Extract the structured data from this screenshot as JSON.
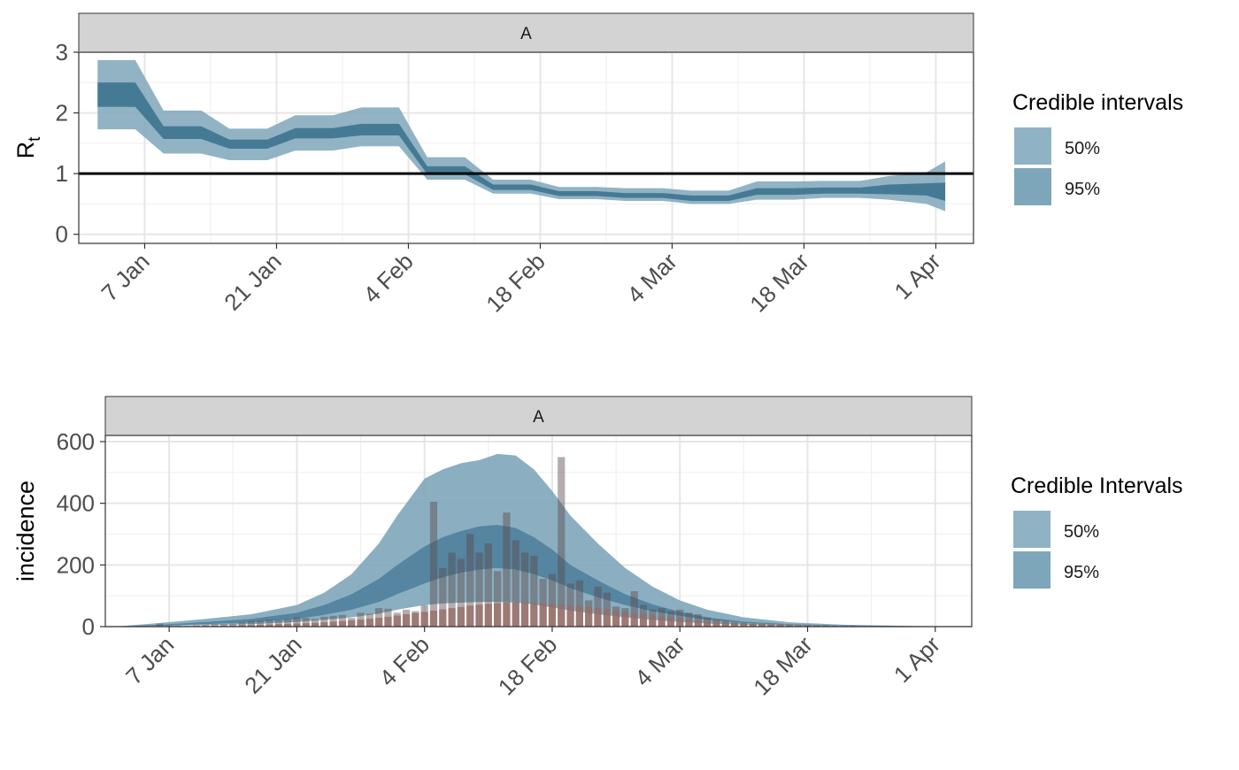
{
  "chart_data": [
    {
      "type": "area",
      "facet_label": "A",
      "ylabel": "R",
      "ylabel_subscript": "t",
      "x_axis": {
        "type": "date",
        "year": 2021,
        "range": [
          "2021-12-31",
          "2022-04-05"
        ]
      },
      "ylim": [
        -0.15,
        3.0
      ],
      "yticks": [
        0,
        1,
        2,
        3
      ],
      "xticks": [
        {
          "date": "2022-01-07",
          "label": "7 Jan"
        },
        {
          "date": "2022-01-21",
          "label": "21 Jan"
        },
        {
          "date": "2022-02-04",
          "label": "4 Feb"
        },
        {
          "date": "2022-02-18",
          "label": "18 Feb"
        },
        {
          "date": "2022-03-04",
          "label": "4 Mar"
        },
        {
          "date": "2022-03-18",
          "label": "18 Mar"
        },
        {
          "date": "2022-04-01",
          "label": "1 Apr"
        }
      ],
      "reference_line": 1,
      "grid": true,
      "legend": {
        "title": "Credible intervals",
        "position": "right",
        "entries": [
          {
            "label": "50%",
            "color": "#8fb3c4"
          },
          {
            "label": "95%",
            "color": "#7ea6ba"
          }
        ]
      },
      "series": {
        "x": [
          "2022-01-02",
          "2022-01-06",
          "2022-01-09",
          "2022-01-13",
          "2022-01-16",
          "2022-01-20",
          "2022-01-23",
          "2022-01-27",
          "2022-01-30",
          "2022-02-03",
          "2022-02-06",
          "2022-02-10",
          "2022-02-13",
          "2022-02-17",
          "2022-02-20",
          "2022-02-24",
          "2022-02-27",
          "2022-03-03",
          "2022-03-06",
          "2022-03-10",
          "2022-03-13",
          "2022-03-17",
          "2022-03-20",
          "2022-03-24",
          "2022-03-27",
          "2022-03-31",
          "2022-04-02"
        ],
        "lower95": [
          1.73,
          1.73,
          1.33,
          1.33,
          1.22,
          1.22,
          1.38,
          1.38,
          1.45,
          1.45,
          0.9,
          0.9,
          0.67,
          0.67,
          0.58,
          0.58,
          0.55,
          0.55,
          0.5,
          0.5,
          0.57,
          0.57,
          0.6,
          0.6,
          0.57,
          0.5,
          0.38
        ],
        "lower50": [
          2.1,
          2.1,
          1.57,
          1.57,
          1.41,
          1.41,
          1.58,
          1.58,
          1.63,
          1.63,
          0.99,
          0.99,
          0.73,
          0.73,
          0.63,
          0.63,
          0.6,
          0.6,
          0.55,
          0.55,
          0.65,
          0.65,
          0.67,
          0.67,
          0.66,
          0.64,
          0.55
        ],
        "upper50": [
          2.5,
          2.5,
          1.78,
          1.78,
          1.56,
          1.56,
          1.75,
          1.75,
          1.82,
          1.82,
          1.12,
          1.12,
          0.82,
          0.82,
          0.71,
          0.71,
          0.68,
          0.68,
          0.64,
          0.64,
          0.76,
          0.76,
          0.77,
          0.77,
          0.82,
          0.84,
          0.85
        ],
        "upper95": [
          2.87,
          2.87,
          2.04,
          2.04,
          1.74,
          1.74,
          1.96,
          1.96,
          2.09,
          2.09,
          1.27,
          1.27,
          0.9,
          0.9,
          0.78,
          0.78,
          0.76,
          0.76,
          0.72,
          0.72,
          0.87,
          0.87,
          0.88,
          0.88,
          0.96,
          1.02,
          1.2
        ]
      }
    },
    {
      "type": "bar",
      "facet_label": "A",
      "ylabel": "incidence",
      "x_axis": {
        "type": "date",
        "year": 2021,
        "range": [
          "2021-12-31",
          "2022-04-05"
        ]
      },
      "ylim": [
        0,
        620
      ],
      "yticks": [
        0,
        200,
        400,
        600
      ],
      "xticks": [
        {
          "date": "2022-01-07",
          "label": "7 Jan"
        },
        {
          "date": "2022-01-21",
          "label": "21 Jan"
        },
        {
          "date": "2022-02-04",
          "label": "4 Feb"
        },
        {
          "date": "2022-02-18",
          "label": "18 Feb"
        },
        {
          "date": "2022-03-04",
          "label": "4 Mar"
        },
        {
          "date": "2022-03-18",
          "label": "18 Mar"
        },
        {
          "date": "2022-04-01",
          "label": "1 Apr"
        }
      ],
      "grid": true,
      "legend": {
        "title": "Credible Intervals",
        "position": "right",
        "entries": [
          {
            "label": "50%",
            "color": "#8fb3c4"
          },
          {
            "label": "95%",
            "color": "#7ea6ba"
          }
        ]
      },
      "bars": {
        "start": "2022-01-06",
        "observed": [
          10,
          4,
          3,
          2,
          4,
          6,
          8,
          8,
          10,
          14,
          18,
          20,
          22,
          22,
          25,
          30,
          28,
          25,
          32,
          35,
          38,
          28,
          45,
          42,
          60,
          58,
          45,
          55,
          50,
          70,
          405,
          190,
          240,
          220,
          300,
          240,
          270,
          180,
          370,
          280,
          240,
          230,
          155,
          170,
          550,
          140,
          150,
          85,
          130,
          110,
          65,
          60,
          115,
          70,
          55,
          60,
          50,
          55,
          45,
          40,
          30,
          22,
          18,
          14,
          12,
          10,
          9,
          8,
          7,
          6,
          5,
          5,
          4,
          4,
          3,
          3,
          3,
          2,
          2,
          2,
          2,
          1,
          1,
          1,
          1
        ],
        "modelled": [
          1,
          1,
          2,
          2,
          2,
          3,
          3,
          4,
          4,
          5,
          5,
          6,
          7,
          8,
          9,
          10,
          11,
          12,
          14,
          16,
          18,
          20,
          23,
          26,
          29,
          32,
          36,
          40,
          44,
          48,
          52,
          56,
          60,
          64,
          68,
          71,
          74,
          76,
          78,
          78,
          78,
          77,
          76,
          74,
          72,
          70,
          67,
          64,
          60,
          56,
          52,
          48,
          44,
          40,
          36,
          32,
          29,
          26,
          23,
          20,
          18,
          16,
          14,
          12,
          10,
          9,
          8,
          7,
          6,
          5,
          4,
          4,
          3,
          3,
          2,
          2,
          2,
          1,
          1,
          1,
          1,
          1,
          1,
          1,
          1
        ]
      },
      "bands": {
        "x": [
          "2022-01-01",
          "2022-01-06",
          "2022-01-11",
          "2022-01-16",
          "2022-01-21",
          "2022-01-24",
          "2022-01-27",
          "2022-01-30",
          "2022-02-01",
          "2022-02-04",
          "2022-02-06",
          "2022-02-08",
          "2022-02-10",
          "2022-02-12",
          "2022-02-14",
          "2022-02-16",
          "2022-02-18",
          "2022-02-20",
          "2022-02-23",
          "2022-02-26",
          "2022-03-01",
          "2022-03-04",
          "2022-03-07",
          "2022-03-11",
          "2022-03-16",
          "2022-03-22",
          "2022-03-28",
          "2022-04-03"
        ],
        "lower95": [
          0,
          2,
          5,
          8,
          15,
          22,
          30,
          42,
          55,
          70,
          75,
          78,
          80,
          80,
          78,
          72,
          62,
          52,
          40,
          30,
          22,
          15,
          10,
          6,
          3,
          2,
          1,
          0
        ],
        "lower50": [
          0,
          3,
          8,
          14,
          25,
          38,
          55,
          80,
          105,
          140,
          160,
          175,
          185,
          190,
          185,
          170,
          150,
          125,
          95,
          70,
          50,
          35,
          22,
          12,
          6,
          3,
          1,
          0
        ],
        "upper50": [
          0,
          6,
          15,
          25,
          45,
          70,
          105,
          155,
          200,
          260,
          290,
          310,
          325,
          330,
          320,
          290,
          250,
          200,
          150,
          105,
          72,
          48,
          30,
          16,
          8,
          4,
          2,
          0
        ],
        "upper95": [
          0,
          12,
          25,
          40,
          70,
          110,
          170,
          270,
          360,
          480,
          510,
          530,
          540,
          560,
          555,
          510,
          440,
          360,
          270,
          190,
          130,
          85,
          55,
          30,
          14,
          6,
          3,
          0
        ]
      }
    }
  ]
}
